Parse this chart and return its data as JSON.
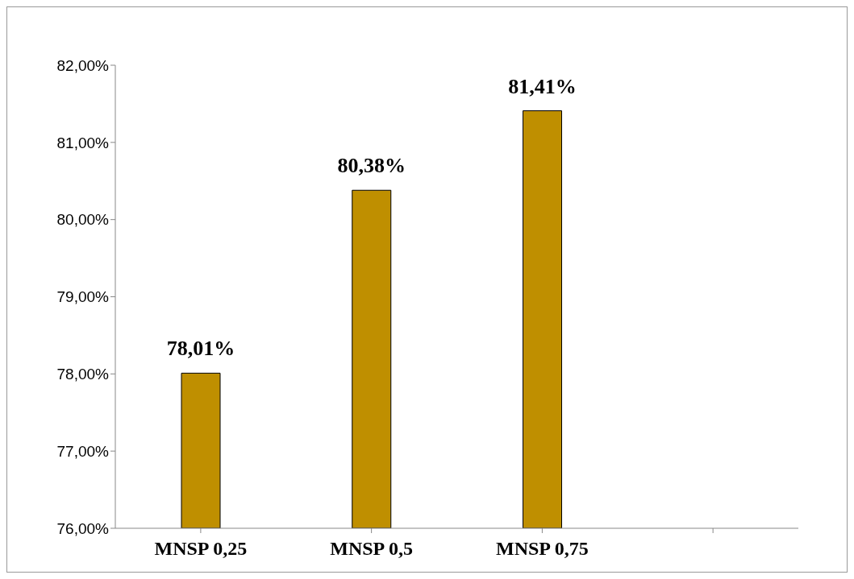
{
  "chart_data": {
    "type": "bar",
    "categories": [
      "MNSP 0,25",
      "MNSP 0,5",
      "MNSP 0,75",
      null
    ],
    "values": [
      78.01,
      80.38,
      81.41,
      null
    ],
    "color": "#bf8f00",
    "value_labels": [
      "78,01%",
      "80,38%",
      "81,41%",
      null
    ],
    "ylim": [
      76,
      82
    ],
    "yticks": [
      {
        "value": 76,
        "label": "76,00%"
      },
      {
        "value": 77,
        "label": "77,00%"
      },
      {
        "value": 78,
        "label": "78,00%"
      },
      {
        "value": 79,
        "label": "79,00%"
      },
      {
        "value": 80,
        "label": "80,00%"
      },
      {
        "value": 81,
        "label": "81,00%"
      },
      {
        "value": 82,
        "label": "82,00%"
      }
    ],
    "grid": false,
    "legend": false
  }
}
